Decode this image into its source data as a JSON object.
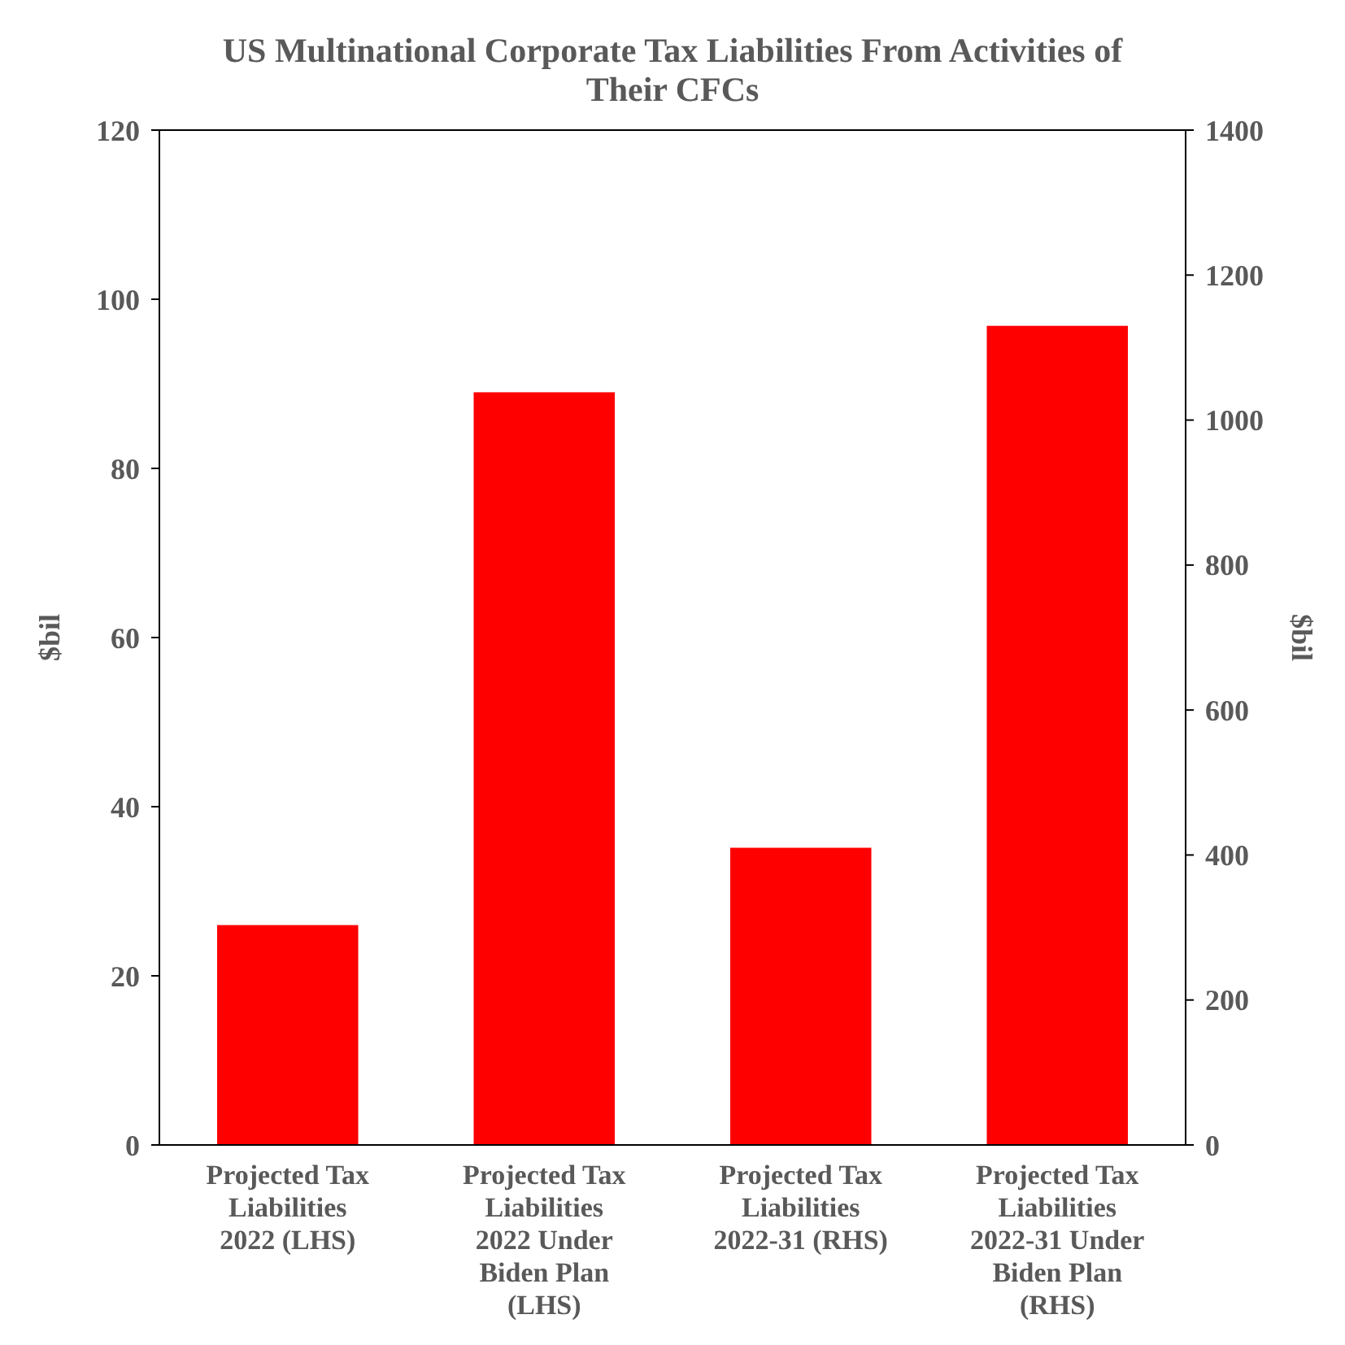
{
  "chart_data": {
    "type": "bar",
    "title": "US Multinational Corporate Tax Liabilities From Activities of Their CFCs",
    "categories": [
      "Projected Tax Liabilities 2022 (LHS)",
      "Projected Tax Liabilities 2022 Under Biden Plan (LHS)",
      "Projected Tax Liabilities 2022-31 (RHS)",
      "Projected Tax Liabilities 2022-31 Under Biden Plan (RHS)"
    ],
    "series": [
      {
        "color": "#ff0000",
        "values": [
          26,
          89,
          null,
          null
        ]
      },
      {
        "color": "#ff0000",
        "axis": "y2",
        "values": [
          null,
          null,
          410,
          1130
        ]
      }
    ],
    "ylabel": "$bil",
    "y2label": "$bil",
    "ylim": [
      0,
      120
    ],
    "yticks": [
      0,
      20,
      40,
      60,
      80,
      100,
      120
    ],
    "y2lim": [
      0,
      1400
    ],
    "y2ticks": [
      0,
      200,
      400,
      600,
      800,
      1000,
      1200,
      1400
    ],
    "grid": false
  }
}
